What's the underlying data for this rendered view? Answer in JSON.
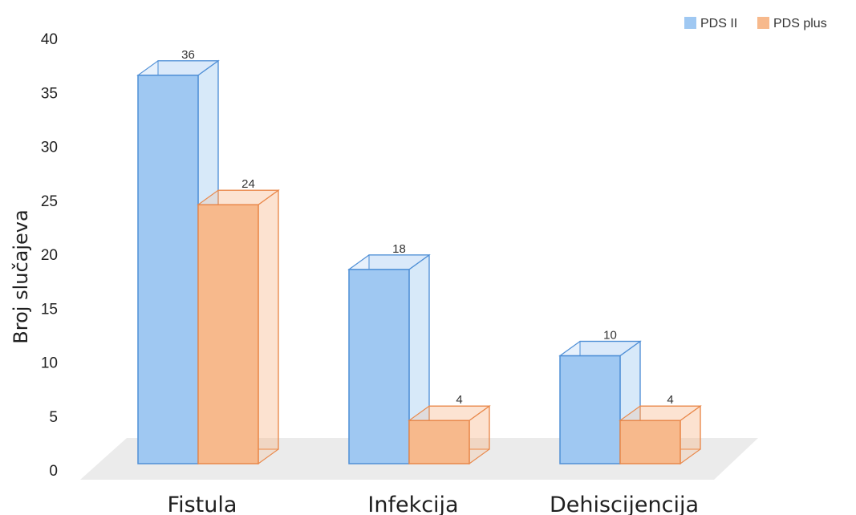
{
  "chart_data": {
    "type": "bar",
    "style": "3d-clustered-column",
    "categories": [
      "Fistula",
      "Infekcija",
      "Dehiscijencija"
    ],
    "series": [
      {
        "name": "PDS II",
        "values": [
          36,
          18,
          10
        ],
        "color": "#9fc8f2",
        "edge": "#4f8fd6"
      },
      {
        "name": "PDS plus",
        "values": [
          24,
          4,
          4
        ],
        "color": "#f7b98c",
        "edge": "#e9884a"
      }
    ],
    "xlabel": "",
    "ylabel": "Broj slučajeva",
    "ylim": [
      0,
      40
    ],
    "yticks": [
      0,
      5,
      10,
      15,
      20,
      25,
      30,
      35,
      40
    ],
    "data_labels": true,
    "grid": false,
    "legend": "top-right",
    "floor_color": "#ebebeb"
  }
}
